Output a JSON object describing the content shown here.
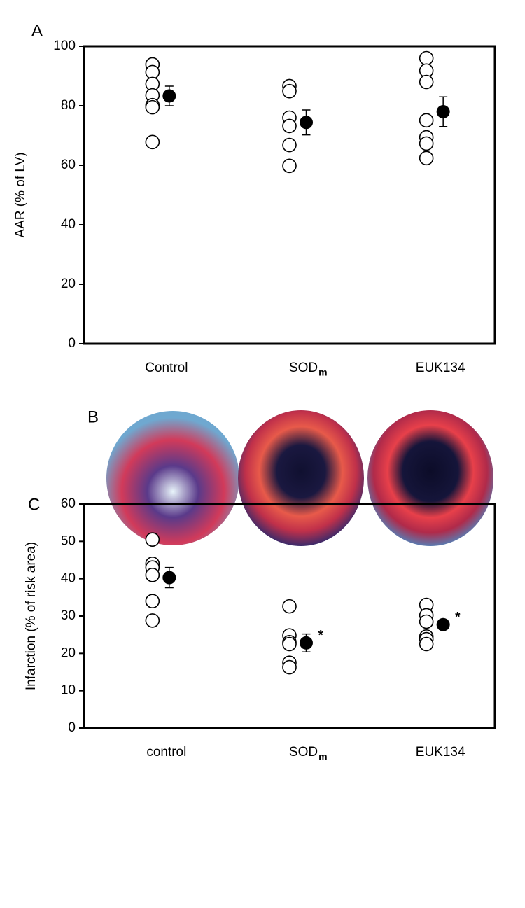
{
  "chart_data": [
    {
      "type": "dotplot",
      "panel": "A",
      "ylabel": "AAR (% of LV)",
      "categories": [
        "Control",
        "SOD",
        "EUK134"
      ],
      "category_subscripts": [
        null,
        "m",
        null
      ],
      "points": [
        [
          93.9,
          91.3,
          87.3,
          83.5,
          80.2,
          79.5,
          67.8
        ],
        [
          86.6,
          84.9,
          76,
          73.2,
          66.8,
          59.8
        ],
        [
          96,
          91.8,
          88,
          75.1,
          69.4,
          67.3,
          62.4
        ]
      ],
      "means": [
        83.3,
        74.4,
        78
      ],
      "errors": [
        3.3,
        4.2,
        5
      ],
      "ylim": [
        0,
        100
      ],
      "yticks": [
        0,
        20,
        40,
        60,
        80,
        100
      ]
    },
    {
      "type": "dotplot",
      "panel": "C",
      "ylabel": "Infarction (% of risk area)",
      "categories": [
        "control",
        "SOD",
        "EUK134"
      ],
      "category_subscripts": [
        null,
        "m",
        null
      ],
      "points": [
        [
          50.5,
          44,
          43,
          41,
          34,
          28.8
        ],
        [
          32.6,
          24.8,
          23,
          22.5,
          17.5,
          16.3
        ],
        [
          33,
          30.2,
          28.5,
          24.5,
          23.8,
          22.5
        ]
      ],
      "means": [
        40.3,
        22.8,
        27.7
      ],
      "errors": [
        2.7,
        2.4,
        1.3
      ],
      "annotations": [
        null,
        "*",
        "*"
      ],
      "ylim": [
        0,
        60
      ],
      "yticks": [
        0,
        10,
        20,
        30,
        40,
        50,
        60
      ]
    }
  ],
  "figure_panel": {
    "label": "B"
  }
}
